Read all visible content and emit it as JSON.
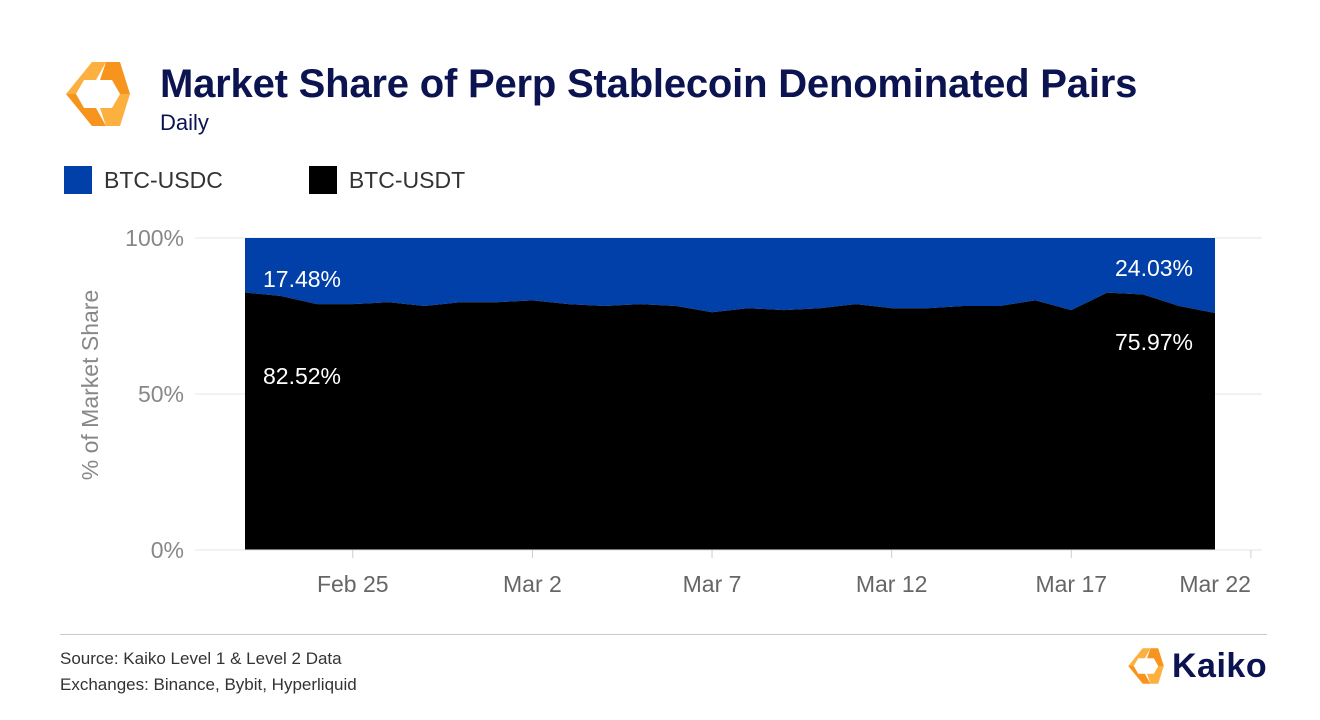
{
  "header": {
    "title": "Market Share of Perp Stablecoin Denominated Pairs",
    "subtitle": "Daily"
  },
  "legend": [
    {
      "label": "BTC-USDC",
      "color": "#0140a8"
    },
    {
      "label": "BTC-USDT",
      "color": "#000000"
    }
  ],
  "footer": {
    "source": "Source: Kaiko Level 1 & Level 2 Data",
    "exchanges": "Exchanges: Binance, Bybit, Hyperliquid",
    "brand": "Kaiko"
  },
  "colors": {
    "accent_orange": "#f7941d",
    "accent_yellow": "#fbb040",
    "navy": "#0b1450"
  },
  "chart_data": {
    "type": "area",
    "stacked": true,
    "ylabel": "% of Market Share",
    "ylim": [
      0,
      100
    ],
    "y_ticks": [
      "0%",
      "50%",
      "100%"
    ],
    "x_ticks": [
      "Feb 25",
      "Mar 2",
      "Mar 7",
      "Mar 12",
      "Mar 17",
      "Mar 22"
    ],
    "x": [
      "Feb 22",
      "Feb 23",
      "Feb 24",
      "Feb 25",
      "Feb 26",
      "Feb 27",
      "Feb 28",
      "Mar 1",
      "Mar 2",
      "Mar 3",
      "Mar 4",
      "Mar 5",
      "Mar 6",
      "Mar 7",
      "Mar 8",
      "Mar 9",
      "Mar 10",
      "Mar 11",
      "Mar 12",
      "Mar 13",
      "Mar 14",
      "Mar 15",
      "Mar 16",
      "Mar 17",
      "Mar 18",
      "Mar 19",
      "Mar 20",
      "Mar 21"
    ],
    "series": [
      {
        "name": "BTC-USDT",
        "color": "#000000",
        "values": [
          82.52,
          81.4,
          78.8,
          78.8,
          79.4,
          78.2,
          79.4,
          79.4,
          80.0,
          78.8,
          78.2,
          78.8,
          78.2,
          76.2,
          77.5,
          76.9,
          77.5,
          78.8,
          77.5,
          77.5,
          78.2,
          78.2,
          80.0,
          76.9,
          82.5,
          81.9,
          78.2,
          75.97
        ]
      },
      {
        "name": "BTC-USDC",
        "color": "#0140a8",
        "values": [
          17.48,
          18.6,
          21.2,
          21.2,
          20.6,
          21.8,
          20.6,
          20.6,
          20.0,
          21.2,
          21.8,
          21.2,
          21.8,
          23.8,
          22.5,
          23.1,
          22.5,
          21.2,
          22.5,
          22.5,
          21.8,
          21.8,
          20.0,
          23.1,
          17.5,
          18.1,
          21.8,
          24.03
        ]
      }
    ],
    "annotations": [
      {
        "text": "17.48%",
        "series": "BTC-USDC",
        "at": "Feb 22"
      },
      {
        "text": "82.52%",
        "series": "BTC-USDT",
        "at": "Feb 22"
      },
      {
        "text": "24.03%",
        "series": "BTC-USDC",
        "at": "Mar 21"
      },
      {
        "text": "75.97%",
        "series": "BTC-USDT",
        "at": "Mar 21"
      }
    ],
    "grid": true
  }
}
